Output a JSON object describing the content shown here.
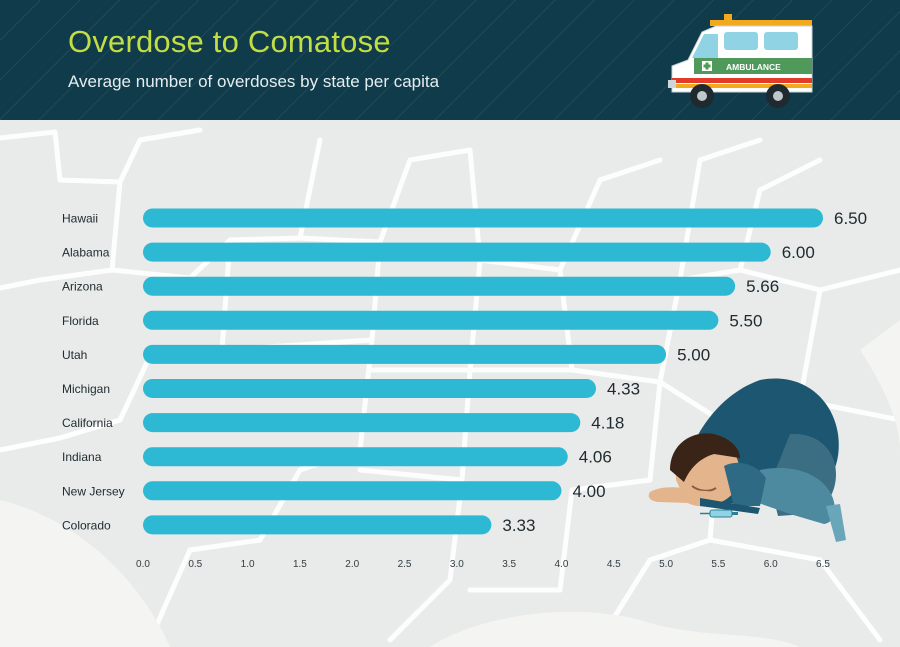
{
  "header": {
    "title": "Overdose to Comatose",
    "subtitle": "Average number of overdoses by state per capita",
    "ambulance_label": "AMBULANCE"
  },
  "colors": {
    "header_bg": "#0f3b4a",
    "title": "#c3dd45",
    "bar": "#2db8d4",
    "background": "#f4f5f3"
  },
  "icons": [
    "ambulance-icon",
    "collapsed-person-illustration",
    "syringe-icon",
    "us-map-background"
  ],
  "chart_data": {
    "type": "bar",
    "orientation": "horizontal",
    "title": "Overdose to Comatose",
    "subtitle": "Average number of overdoses by state per capita",
    "xlabel": "",
    "ylabel": "",
    "categories": [
      "Hawaii",
      "Alabama",
      "Arizona",
      "Florida",
      "Utah",
      "Michigan",
      "California",
      "Indiana",
      "New Jersey",
      "Colorado"
    ],
    "values": [
      6.5,
      6.0,
      5.66,
      5.5,
      5.0,
      4.33,
      4.18,
      4.06,
      4.0,
      3.33
    ],
    "value_labels": [
      "6.50",
      "6.00",
      "5.66",
      "5.50",
      "5.00",
      "4.33",
      "4.18",
      "4.06",
      "4.00",
      "3.33"
    ],
    "xlim": [
      0,
      6.5
    ],
    "xticks": [
      "0.0",
      "0.5",
      "1.0",
      "1.5",
      "2.0",
      "2.5",
      "3.0",
      "3.5",
      "4.0",
      "4.5",
      "5.0",
      "5.5",
      "6.0",
      "6.5"
    ],
    "grid": false,
    "legend": "none"
  }
}
